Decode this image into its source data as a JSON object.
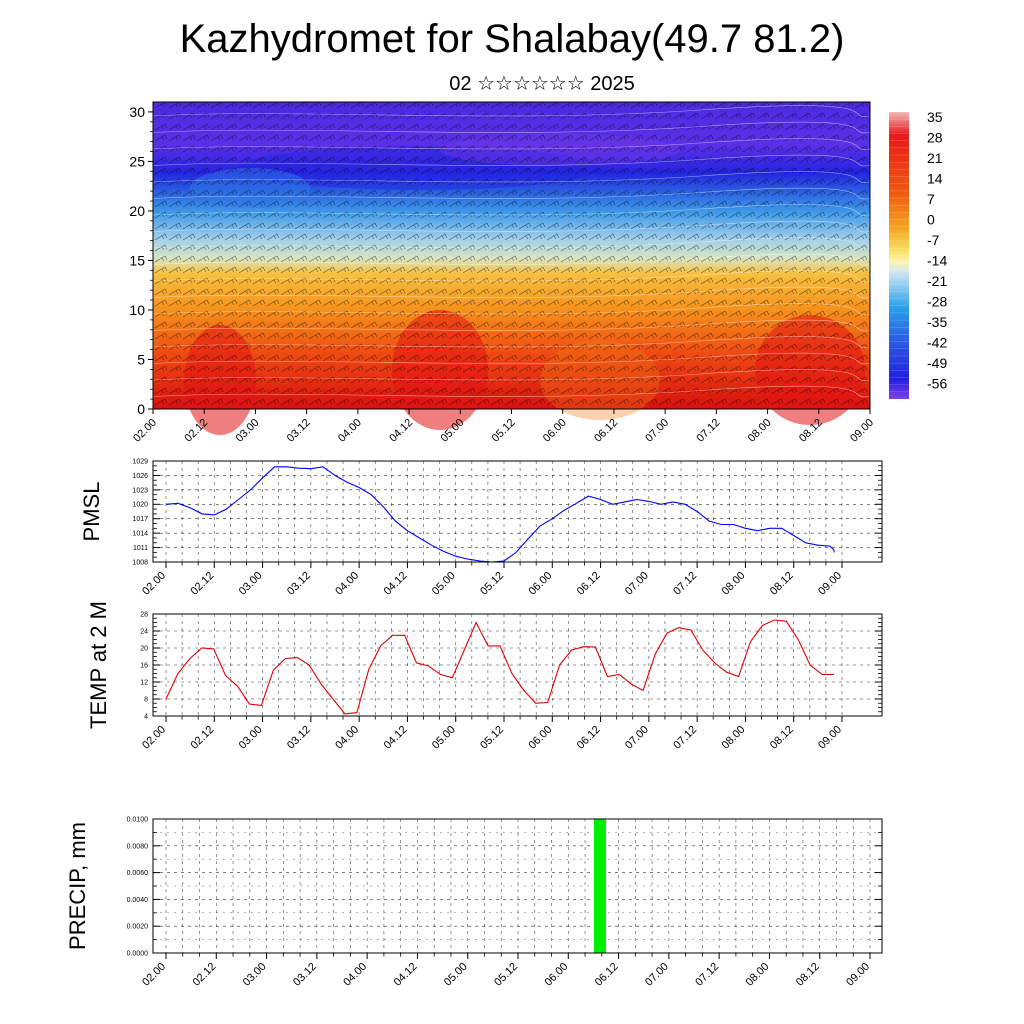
{
  "page": {
    "title": "Kazhydromet for Shalabay(49.7 81.2)",
    "subtitle": "02 ☆☆☆☆☆☆ 2025"
  },
  "chart_data": [
    {
      "id": "cross_section",
      "type": "heatmap",
      "yticks": [
        "0",
        "5",
        "10",
        "15",
        "20",
        "25",
        "30"
      ],
      "ylim": [
        0,
        31
      ],
      "xticks": [
        "02.00",
        "02.12",
        "03.00",
        "03.12",
        "04.00",
        "04.12",
        "05.00",
        "05.12",
        "06.00",
        "06.12",
        "07.00",
        "07.12",
        "08.00",
        "08.12",
        "09.00"
      ],
      "colorbar_labels": [
        "35",
        "28",
        "21",
        "14",
        "7",
        "0",
        "-7",
        "-14",
        "-21",
        "-28",
        "-35",
        "-42",
        "-49",
        "-56"
      ],
      "colors": {
        "hot": "#e11414",
        "warm": "#f07a14",
        "mild": "#f6b43a",
        "cool": "#a5d0ea",
        "cold": "#2d78e6",
        "very_cold": "#2424e0",
        "extreme": "#7a3ae6"
      },
      "overlay": "wind barbs and isotherms"
    },
    {
      "id": "pmsl",
      "type": "line",
      "ylabel": "PMSL",
      "yticks": [
        "1008",
        "1011",
        "1014",
        "1017",
        "1020",
        "1023",
        "1026",
        "1029"
      ],
      "ylim": [
        1008,
        1029
      ],
      "xticks": [
        "02.00",
        "02.12",
        "03.00",
        "03.12",
        "04.00",
        "04.12",
        "05.00",
        "05.12",
        "06.00",
        "06.12",
        "07.00",
        "07.12",
        "08.00",
        "08.12",
        "09.00"
      ],
      "xlim": [
        0,
        56
      ],
      "color": "#0000ff",
      "points": [
        [
          0,
          1020
        ],
        [
          1,
          1020.2
        ],
        [
          2,
          1019.3
        ],
        [
          3,
          1018
        ],
        [
          4,
          1017.8
        ],
        [
          5,
          1019
        ],
        [
          6,
          1021
        ],
        [
          7,
          1023
        ],
        [
          8,
          1025.5
        ],
        [
          9,
          1027.8
        ],
        [
          10,
          1027.8
        ],
        [
          11,
          1027.5
        ],
        [
          12,
          1027.4
        ],
        [
          13,
          1027.8
        ],
        [
          14,
          1026
        ],
        [
          15,
          1024.6
        ],
        [
          16,
          1023.5
        ],
        [
          17,
          1022
        ],
        [
          18,
          1019.5
        ],
        [
          19,
          1016.5
        ],
        [
          20,
          1014.5
        ],
        [
          21,
          1013
        ],
        [
          22,
          1011.5
        ],
        [
          23,
          1010.2
        ],
        [
          24,
          1009.2
        ],
        [
          25,
          1008.6
        ],
        [
          26,
          1008.2
        ],
        [
          27,
          1008
        ],
        [
          28,
          1008.2
        ],
        [
          29,
          1010
        ],
        [
          30,
          1012.8
        ],
        [
          31,
          1015.5
        ],
        [
          32,
          1017
        ],
        [
          33,
          1018.8
        ],
        [
          34,
          1020.2
        ],
        [
          35,
          1021.7
        ],
        [
          36,
          1021
        ],
        [
          37,
          1020
        ],
        [
          38,
          1020.5
        ],
        [
          39,
          1021
        ],
        [
          40,
          1020.6
        ],
        [
          41,
          1020
        ],
        [
          42,
          1020.5
        ],
        [
          43,
          1020
        ],
        [
          44,
          1018.5
        ],
        [
          45,
          1016.5
        ],
        [
          46,
          1015.8
        ],
        [
          47,
          1015.8
        ],
        [
          48,
          1015
        ],
        [
          49,
          1014.5
        ],
        [
          50,
          1015
        ],
        [
          51,
          1015
        ],
        [
          52,
          1013.5
        ],
        [
          53,
          1012
        ],
        [
          54,
          1011.5
        ],
        [
          55,
          1011.3
        ],
        [
          56,
          1010.5
        ],
        [
          57,
          1010
        ],
        [
          58,
          1010
        ]
      ]
    },
    {
      "id": "temp",
      "type": "line",
      "ylabel": "TEMP at 2 M",
      "yticks": [
        "4",
        "8",
        "12",
        "16",
        "20",
        "24",
        "28"
      ],
      "ylim": [
        4,
        28
      ],
      "xticks": [
        "02.00",
        "02.12",
        "03.00",
        "03.12",
        "04.00",
        "04.12",
        "05.00",
        "05.12",
        "06.00",
        "06.12",
        "07.00",
        "07.12",
        "08.00",
        "08.12",
        "09.00"
      ],
      "color": "#e00000",
      "points": [
        [
          0,
          8
        ],
        [
          1,
          14
        ],
        [
          2,
          17.5
        ],
        [
          3,
          20
        ],
        [
          4,
          19.8
        ],
        [
          5,
          13.5
        ],
        [
          6,
          11
        ],
        [
          7,
          6.8
        ],
        [
          8,
          6.5
        ],
        [
          9,
          14.8
        ],
        [
          10,
          17.5
        ],
        [
          11,
          17.8
        ],
        [
          12,
          16
        ],
        [
          13,
          11.5
        ],
        [
          14,
          8
        ],
        [
          15,
          4.5
        ],
        [
          16,
          4.8
        ],
        [
          17,
          15
        ],
        [
          18,
          20.5
        ],
        [
          19,
          23
        ],
        [
          20,
          23
        ],
        [
          21,
          16.5
        ],
        [
          22,
          15.8
        ],
        [
          23,
          13.8
        ],
        [
          24,
          13
        ],
        [
          25,
          19.5
        ],
        [
          26,
          26
        ],
        [
          27,
          20.5
        ],
        [
          28,
          20.5
        ],
        [
          29,
          14
        ],
        [
          30,
          10
        ],
        [
          31,
          7
        ],
        [
          32,
          7.2
        ],
        [
          33,
          16
        ],
        [
          34,
          19.5
        ],
        [
          35,
          20.3
        ],
        [
          36,
          20.2
        ],
        [
          37,
          13.3
        ],
        [
          38,
          13.8
        ],
        [
          39,
          11.5
        ],
        [
          40,
          10
        ],
        [
          41,
          18.5
        ],
        [
          42,
          23.5
        ],
        [
          43,
          24.8
        ],
        [
          44,
          24.2
        ],
        [
          45,
          19.5
        ],
        [
          46,
          16.5
        ],
        [
          47,
          14.3
        ],
        [
          48,
          13.3
        ],
        [
          49,
          21.5
        ],
        [
          50,
          25.3
        ],
        [
          51,
          26.6
        ],
        [
          52,
          26.3
        ],
        [
          53,
          22
        ],
        [
          54,
          16
        ],
        [
          55,
          13.8
        ],
        [
          56,
          13.8
        ]
      ]
    },
    {
      "id": "precip",
      "type": "bar",
      "ylabel": "PRECIP, mm",
      "yticks": [
        "0.0000",
        "0.0020",
        "0.0040",
        "0.0060",
        "0.0080",
        "0.0100"
      ],
      "ylim": [
        0,
        0.01
      ],
      "xticks": [
        "02.00",
        "02.12",
        "03.00",
        "03.12",
        "04.00",
        "04.12",
        "05.00",
        "05.12",
        "06.00",
        "06.12",
        "07.00",
        "07.12",
        "08.00",
        "08.12",
        "09.00"
      ],
      "color": "#00ee00",
      "bars": [
        {
          "x": 4.3,
          "value": 0.01
        }
      ]
    }
  ]
}
